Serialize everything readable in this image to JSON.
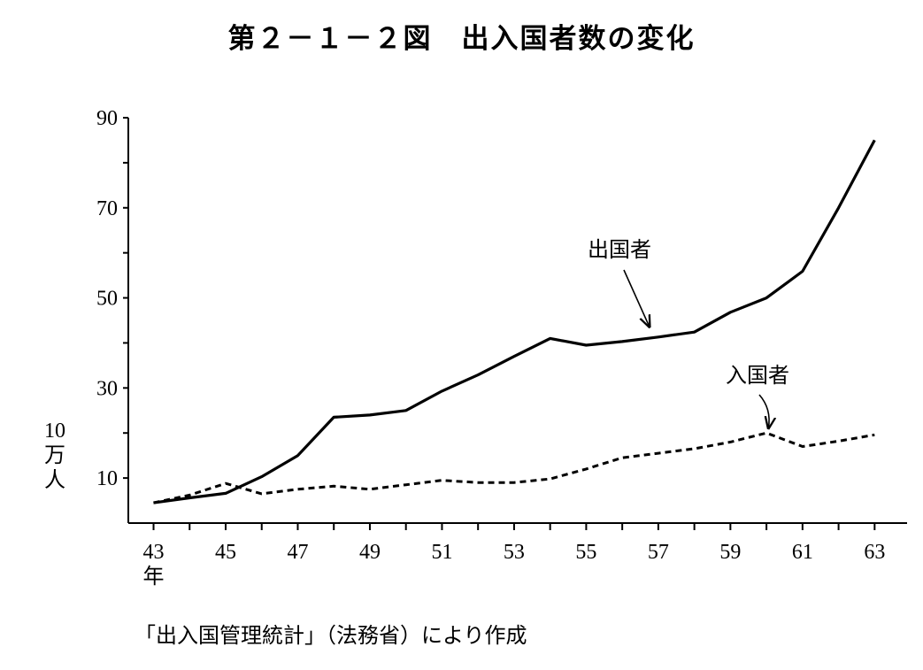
{
  "chart_data": {
    "type": "line",
    "title": "第２－１－２図　出入国者数の変化",
    "ylabel": "10万人",
    "ylabel_lines": [
      "10",
      "万",
      "人"
    ],
    "xlabel_suffix": "年",
    "source": "「出入国管理統計」（法務省）により作成",
    "xlim": [
      42.3,
      63.9
    ],
    "ylim": [
      0,
      90
    ],
    "y_ticks": [
      10,
      30,
      50,
      70,
      90
    ],
    "x_ticks": [
      43,
      45,
      47,
      49,
      51,
      53,
      55,
      57,
      59,
      61,
      63
    ],
    "grid": false,
    "series": [
      {
        "name": "出国者",
        "style": "solid",
        "color": "#000000",
        "annotation": {
          "target": [
            57,
            42
          ]
        },
        "x": [
          43,
          44,
          45,
          46,
          47,
          48,
          49,
          50,
          51,
          52,
          53,
          54,
          55,
          56,
          57,
          58,
          59,
          60,
          61,
          62,
          63
        ],
        "values": [
          4.5,
          5.6,
          6.6,
          10.3,
          15,
          23.5,
          24,
          25,
          29.3,
          32.9,
          37,
          41,
          39.5,
          40.3,
          41.3,
          42.4,
          46.8,
          50,
          55.9,
          70,
          85
        ]
      },
      {
        "name": "入国者",
        "style": "dashed",
        "color": "#000000",
        "annotation": {
          "target": [
            60.3,
            19.5
          ]
        },
        "x": [
          43,
          44,
          45,
          46,
          47,
          48,
          49,
          50,
          51,
          52,
          53,
          54,
          55,
          56,
          57,
          58,
          59,
          60,
          61,
          62,
          63
        ],
        "values": [
          4.5,
          6.2,
          8.8,
          6.5,
          7.5,
          8.2,
          7.5,
          8.5,
          9.5,
          9,
          9,
          9.8,
          12,
          14.5,
          15.5,
          16.5,
          18,
          20,
          17,
          18.2,
          19.6
        ]
      }
    ]
  }
}
